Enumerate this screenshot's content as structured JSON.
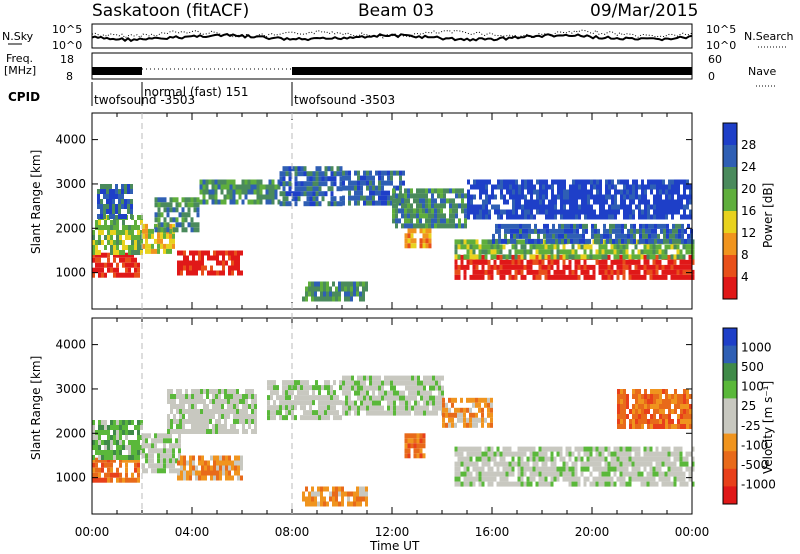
{
  "header": {
    "station": "Saskatoon (fitACF)",
    "beam": "Beam 03",
    "date": "09/Mar/2015"
  },
  "noise_panel": {
    "left_label": "N.Sky",
    "right_label": "N.Search",
    "left_ticks": [
      "10^5",
      "10^0"
    ],
    "right_ticks": [
      "10^5",
      "10^0"
    ]
  },
  "freq_panel": {
    "left_label_line1": "Freq.",
    "left_label_line2": "[MHz]",
    "right_label": "Nave",
    "left_ticks": [
      "18",
      "8"
    ],
    "right_ticks": [
      "60",
      "0"
    ]
  },
  "cpid_panel": {
    "label": "CPID",
    "modes": [
      {
        "text": "twofsound -3503",
        "start_hour": 0
      },
      {
        "text": "normal (fast) 151",
        "start_hour": 2
      },
      {
        "text": "twofsound -3503",
        "start_hour": 8
      }
    ]
  },
  "colors": {
    "power_scale": [
      "#1e3fc8",
      "#2f5fb4",
      "#4a8a5c",
      "#5fae3c",
      "#e8d21e",
      "#f0941e",
      "#e8501a",
      "#e01818"
    ],
    "velocity_scale": [
      "#1e3fc8",
      "#2f5fb4",
      "#3f8a48",
      "#5ab83a",
      "#c8c8c0",
      "#c8c8c0",
      "#f0941e",
      "#e86a1a",
      "#e8401a",
      "#e01818"
    ]
  },
  "chart_data": [
    {
      "type": "heatmap",
      "panel": "power",
      "xlabel": "Time UT",
      "ylabel": "Slant Range [km]",
      "colorbar_label": "Power [dB]",
      "colorbar_ticks": [
        "28",
        "24",
        "20",
        "16",
        "12",
        "8",
        "4"
      ],
      "x_ticks": [
        "00:00",
        "04:00",
        "08:00",
        "12:00",
        "16:00",
        "20:00",
        "00:00"
      ],
      "y_ticks": [
        "1000",
        "2000",
        "3000",
        "4000"
      ],
      "xlim": [
        0,
        24
      ],
      "ylim": [
        180,
        4600
      ],
      "regions": [
        {
          "t0": 0.0,
          "t1": 1.9,
          "r0": 900,
          "r1": 1450,
          "level": 7
        },
        {
          "t0": 0.0,
          "t1": 2.0,
          "r0": 1450,
          "r1": 2300,
          "level": 3
        },
        {
          "t0": 0.2,
          "t1": 1.6,
          "r0": 2300,
          "r1": 3000,
          "level": 1
        },
        {
          "t0": 2.0,
          "t1": 3.3,
          "r0": 1500,
          "r1": 2100,
          "level": 4
        },
        {
          "t0": 2.5,
          "t1": 4.3,
          "r0": 2000,
          "r1": 2700,
          "level": 2
        },
        {
          "t0": 3.4,
          "t1": 6.0,
          "r0": 1000,
          "r1": 1500,
          "level": 7
        },
        {
          "t0": 4.3,
          "t1": 7.5,
          "r0": 2600,
          "r1": 3100,
          "level": 2
        },
        {
          "t0": 7.5,
          "t1": 10.0,
          "r0": 2500,
          "r1": 3400,
          "level": 1
        },
        {
          "t0": 8.4,
          "t1": 11.0,
          "r0": 450,
          "r1": 800,
          "level": 2
        },
        {
          "t0": 10.0,
          "t1": 12.5,
          "r0": 2600,
          "r1": 3300,
          "level": 1
        },
        {
          "t0": 12.5,
          "t1": 13.5,
          "r0": 1600,
          "r1": 2000,
          "level": 5
        },
        {
          "t0": 12.0,
          "t1": 15.0,
          "r0": 2100,
          "r1": 2900,
          "level": 2
        },
        {
          "t0": 14.5,
          "t1": 24.0,
          "r0": 900,
          "r1": 1400,
          "level": 7
        },
        {
          "t0": 14.5,
          "t1": 24.0,
          "r0": 1400,
          "r1": 1750,
          "level": 3
        },
        {
          "t0": 16.0,
          "t1": 24.0,
          "r0": 1750,
          "r1": 2100,
          "level": 1
        },
        {
          "t0": 15.0,
          "t1": 24.0,
          "r0": 2300,
          "r1": 3100,
          "level": 0
        }
      ]
    },
    {
      "type": "heatmap",
      "panel": "velocity",
      "xlabel": "Time UT",
      "ylabel": "Slant Range [km]",
      "colorbar_label": "Velocity [m s⁻¹]",
      "colorbar_ticks": [
        "1000",
        "500",
        "100",
        "25",
        "-25",
        "-100",
        "-500",
        "-1000"
      ],
      "x_ticks": [
        "00:00",
        "04:00",
        "08:00",
        "12:00",
        "16:00",
        "20:00",
        "00:00"
      ],
      "y_ticks": [
        "1000",
        "2000",
        "3000",
        "4000"
      ],
      "xlim": [
        0,
        24
      ],
      "ylim": [
        180,
        4600
      ],
      "regions": [
        {
          "t0": 0.0,
          "t1": 1.9,
          "r0": 900,
          "r1": 1450,
          "level": 7
        },
        {
          "t0": 0.0,
          "t1": 2.0,
          "r0": 1450,
          "r1": 2300,
          "level": 3
        },
        {
          "t0": 2.0,
          "t1": 3.5,
          "r0": 1200,
          "r1": 2000,
          "level": 4
        },
        {
          "t0": 3.0,
          "t1": 6.5,
          "r0": 2000,
          "r1": 3000,
          "level": 4
        },
        {
          "t0": 3.4,
          "t1": 6.0,
          "r0": 1000,
          "r1": 1500,
          "level": 6
        },
        {
          "t0": 7.0,
          "t1": 10.0,
          "r0": 2400,
          "r1": 3200,
          "level": 4
        },
        {
          "t0": 8.4,
          "t1": 11.0,
          "r0": 450,
          "r1": 800,
          "level": 6
        },
        {
          "t0": 10.0,
          "t1": 14.0,
          "r0": 2400,
          "r1": 3300,
          "level": 4
        },
        {
          "t0": 12.5,
          "t1": 13.3,
          "r0": 1500,
          "r1": 2000,
          "level": 7
        },
        {
          "t0": 14.5,
          "t1": 24.0,
          "r0": 800,
          "r1": 1700,
          "level": 4
        },
        {
          "t0": 14.0,
          "t1": 16.0,
          "r0": 2200,
          "r1": 2800,
          "level": 6
        },
        {
          "t0": 21.0,
          "t1": 24.0,
          "r0": 2200,
          "r1": 3000,
          "level": 7
        }
      ]
    }
  ]
}
